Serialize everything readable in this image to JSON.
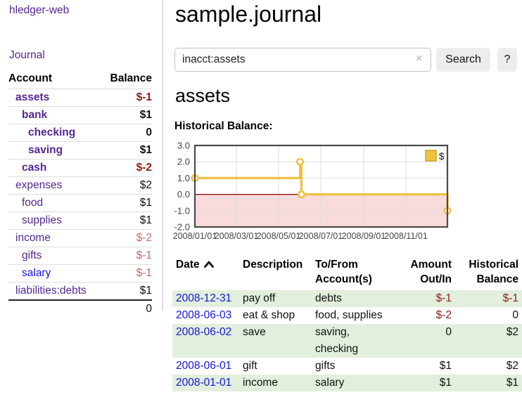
{
  "app": {
    "brand": "hledger-web",
    "nav": {
      "journal": "Journal"
    }
  },
  "sidebar": {
    "headers": {
      "account": "Account",
      "balance": "Balance"
    },
    "accounts": [
      {
        "name": "assets",
        "indent": 1,
        "bold": true,
        "balance": "$-1",
        "negative": true,
        "unvisited": false
      },
      {
        "name": "bank",
        "indent": 2,
        "bold": true,
        "balance": "$1",
        "negative": false,
        "unvisited": false
      },
      {
        "name": "checking",
        "indent": 3,
        "bold": true,
        "balance": "0",
        "negative": false,
        "unvisited": false
      },
      {
        "name": "saving",
        "indent": 3,
        "bold": true,
        "balance": "$1",
        "negative": false,
        "unvisited": false
      },
      {
        "name": "cash",
        "indent": 2,
        "bold": true,
        "balance": "$-2",
        "negative": true,
        "unvisited": false
      },
      {
        "name": "expenses",
        "indent": 1,
        "bold": false,
        "balance": "$2",
        "negative": false,
        "unvisited": false
      },
      {
        "name": "food",
        "indent": 2,
        "bold": false,
        "balance": "$1",
        "negative": false,
        "unvisited": false
      },
      {
        "name": "supplies",
        "indent": 2,
        "bold": false,
        "balance": "$1",
        "negative": false,
        "unvisited": false
      },
      {
        "name": "income",
        "indent": 1,
        "bold": false,
        "balance": "$-2",
        "negative": true,
        "unvisited": false
      },
      {
        "name": "gifts",
        "indent": 2,
        "bold": false,
        "balance": "$-1",
        "negative": true,
        "unvisited": false
      },
      {
        "name": "salary",
        "indent": 2,
        "bold": false,
        "balance": "$-1",
        "negative": true,
        "unvisited": true
      },
      {
        "name": "liabilities:debts",
        "indent": 1,
        "bold": false,
        "balance": "$1",
        "negative": false,
        "unvisited": false
      }
    ],
    "total": "0"
  },
  "header": {
    "title": "sample.journal"
  },
  "search": {
    "value": "inacct:assets",
    "clear_icon": "×",
    "button_label": "Search",
    "help_label": "?"
  },
  "main": {
    "account_title": "assets",
    "chart_title": "Historical Balance:"
  },
  "chart_data": {
    "type": "line",
    "step": true,
    "title": "Historical Balance:",
    "series": [
      {
        "name": "$",
        "color": "#EDC240",
        "points": [
          {
            "date": "2008-01-01",
            "day": 0,
            "value": 1
          },
          {
            "date": "2008-06-01",
            "day": 152,
            "value": 2
          },
          {
            "date": "2008-06-03",
            "day": 154,
            "value": 0
          },
          {
            "date": "2008-12-31",
            "day": 365,
            "value": -1
          }
        ]
      }
    ],
    "x_axis": {
      "range_days": [
        0,
        365
      ],
      "ticks": [
        {
          "label": "2008/01/01",
          "day": 0
        },
        {
          "label": "2008/03/01",
          "day": 60
        },
        {
          "label": "2008/05/01",
          "day": 121
        },
        {
          "label": "2008/07/01",
          "day": 182
        },
        {
          "label": "2008/09/01",
          "day": 244
        },
        {
          "label": "2008/11/01",
          "day": 305
        }
      ]
    },
    "y_axis": {
      "range": [
        -2,
        3
      ],
      "ticks": [
        {
          "label": "3.0",
          "value": 3
        },
        {
          "label": "2.0",
          "value": 2
        },
        {
          "label": "1.0",
          "value": 1
        },
        {
          "label": "0.0",
          "value": 0
        },
        {
          "label": "-1.0",
          "value": -1
        },
        {
          "label": "-2.0",
          "value": -2
        }
      ]
    },
    "legend": {
      "position": "top-right",
      "label": "$"
    },
    "grid": true,
    "negative_region_below_zero": true
  },
  "register": {
    "columns": [
      {
        "label": "Date",
        "lines": [
          "Date"
        ],
        "align": "left",
        "sortable": true,
        "sort_direction": "asc"
      },
      {
        "label": "Description",
        "lines": [
          "Description"
        ],
        "align": "left"
      },
      {
        "label": "To/From Account(s)",
        "lines": [
          "To/From",
          "Account(s)"
        ],
        "align": "left"
      },
      {
        "label": "Amount Out/In",
        "lines": [
          "Amount",
          "Out/In"
        ],
        "align": "right"
      },
      {
        "label": "Historical Balance",
        "lines": [
          "Historical",
          "Balance"
        ],
        "align": "right"
      }
    ],
    "rows": [
      {
        "date": "2008-12-31",
        "description": "pay off",
        "accounts": "debts",
        "accounts_lines": [
          "debts"
        ],
        "amount": "$-1",
        "amount_negative": true,
        "balance": "$-1",
        "balance_negative": true
      },
      {
        "date": "2008-06-03",
        "description": "eat & shop",
        "accounts": "food, supplies",
        "accounts_lines": [
          "food, supplies"
        ],
        "amount": "$-2",
        "amount_negative": true,
        "balance": "0",
        "balance_negative": false
      },
      {
        "date": "2008-06-02",
        "description": "save",
        "accounts": "saving, checking",
        "accounts_lines": [
          "saving,",
          "checking"
        ],
        "amount": "0",
        "amount_negative": false,
        "balance": "$2",
        "balance_negative": false
      },
      {
        "date": "2008-06-01",
        "description": "gift",
        "accounts": "gifts",
        "accounts_lines": [
          "gifts"
        ],
        "amount": "$1",
        "amount_negative": false,
        "balance": "$2",
        "balance_negative": false
      },
      {
        "date": "2008-01-01",
        "description": "income",
        "accounts": "salary",
        "accounts_lines": [
          "salary"
        ],
        "amount": "$1",
        "amount_negative": false,
        "balance": "$1",
        "balance_negative": false
      }
    ]
  },
  "colors": {
    "link_purple": "#54278f",
    "link_blue": "#1616d9",
    "negative_strong": "#8e1a1a",
    "negative_muted": "#c36a6a",
    "row_green": "#e2efdd",
    "series_gold": "#EDC240",
    "legend_box_border": "#cfa524",
    "negative_region_pink": "#f9dbdb",
    "zero_line": "#8b0000",
    "gridline": "#dddddd",
    "chart_border": "#4a4a4a",
    "axis_text": "#444444",
    "button_bg": "#ededed",
    "divider": "#dddddd",
    "row_border": "#dddddd",
    "total_border": "#222222",
    "clear_icon": "#c9bedc"
  }
}
